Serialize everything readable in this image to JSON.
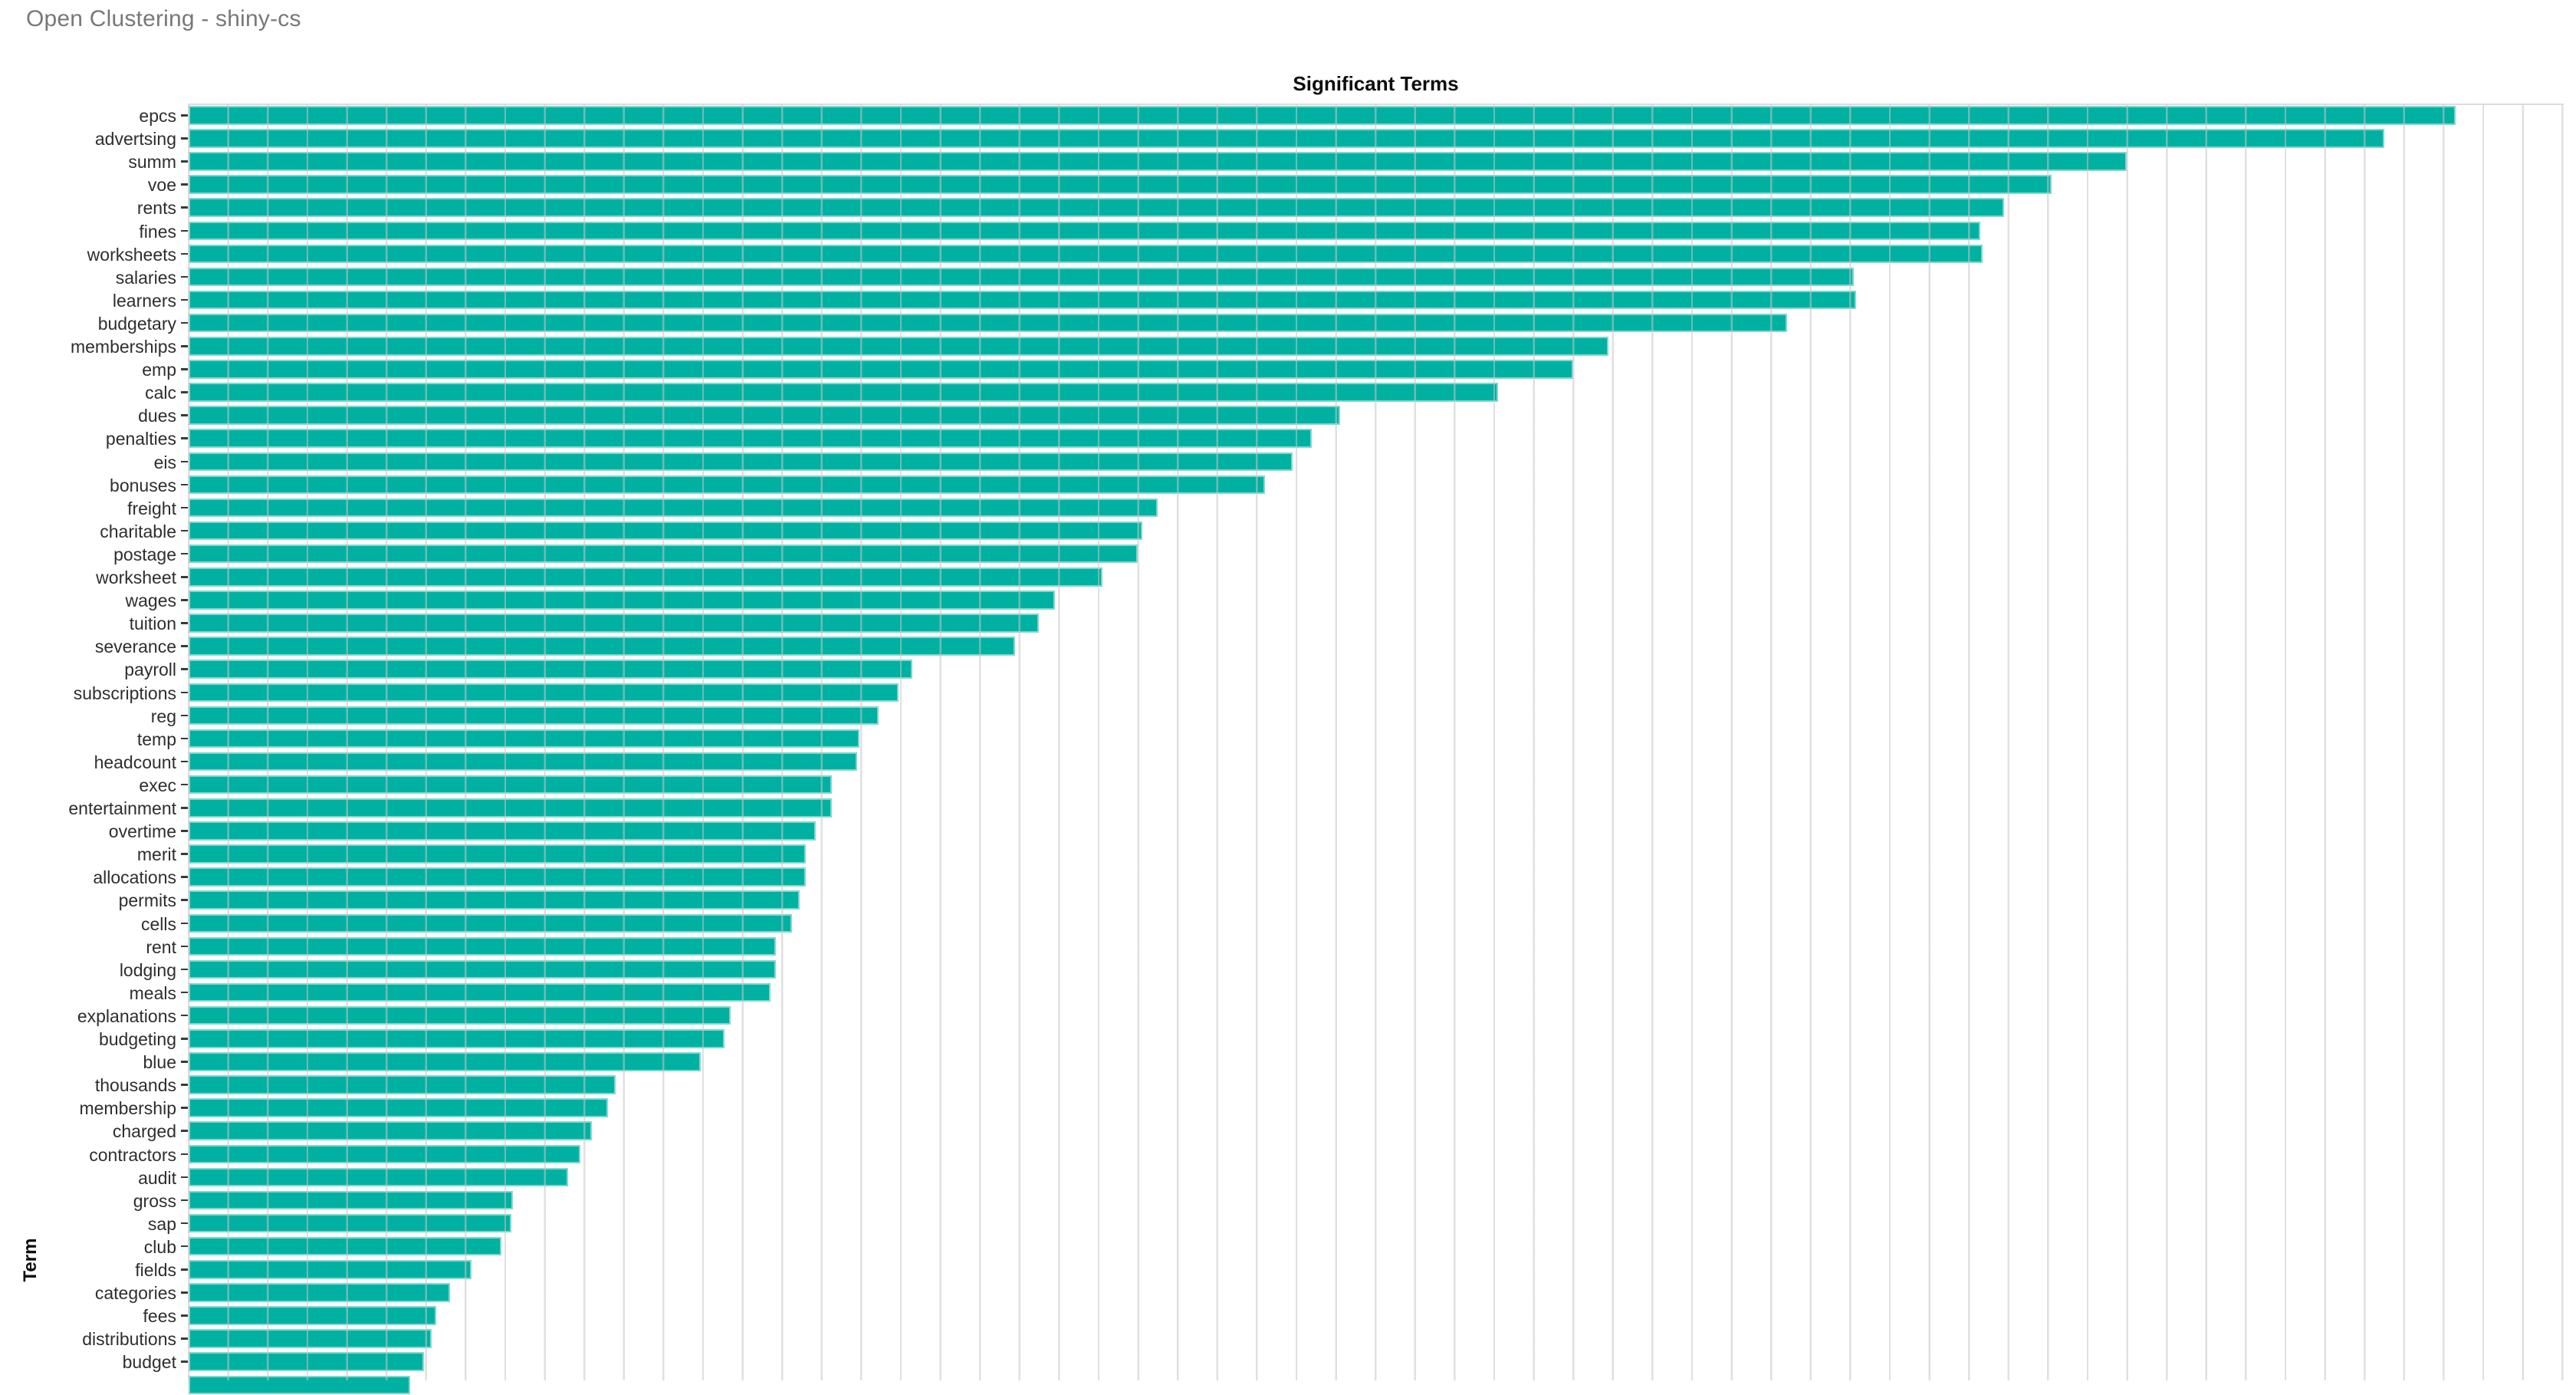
{
  "header": {
    "title": "Open Clustering - shiny-cs"
  },
  "chart_data": {
    "type": "bar",
    "orientation": "horizontal",
    "title": "Significant Terms",
    "xlabel": "",
    "ylabel": "Term",
    "legend": null,
    "grid": "vertical",
    "x_axis_tick_labels_visible": false,
    "units": "gridline-intervals",
    "xlim": [
      0,
      60
    ],
    "bar_color": "#00b1a1",
    "bar_border_color": "#7fd8d0",
    "grid_color": "#dcdcdc",
    "categories": [
      "epcs",
      "advertsing",
      "summ",
      "voe",
      "rents",
      "fines",
      "worksheets",
      "salaries",
      "learners",
      "budgetary",
      "memberships",
      "emp",
      "calc",
      "dues",
      "penalties",
      "eis",
      "bonuses",
      "freight",
      "charitable",
      "postage",
      "worksheet",
      "wages",
      "tuition",
      "severance",
      "payroll",
      "subscriptions",
      "reg",
      "temp",
      "headcount",
      "exec",
      "entertainment",
      "overtime",
      "merit",
      "allocations",
      "permits",
      "cells",
      "rent",
      "lodging",
      "meals",
      "explanations",
      "budgeting",
      "blue",
      "thousands",
      "membership",
      "charged",
      "contractors",
      "audit",
      "gross",
      "sap",
      "club",
      "fields",
      "categories",
      "fees",
      "distributions",
      "budget",
      ""
    ],
    "values": [
      57.3,
      55.5,
      49.0,
      47.1,
      45.9,
      45.3,
      45.35,
      42.1,
      42.15,
      40.4,
      35.9,
      35.0,
      33.1,
      29.1,
      28.4,
      27.9,
      27.2,
      24.5,
      24.1,
      24.0,
      23.1,
      21.9,
      21.5,
      20.9,
      18.3,
      17.95,
      17.45,
      16.95,
      16.9,
      16.25,
      16.25,
      15.85,
      15.6,
      15.6,
      15.45,
      15.25,
      14.85,
      14.85,
      14.7,
      13.7,
      13.55,
      12.95,
      10.8,
      10.6,
      10.2,
      9.9,
      9.6,
      8.2,
      8.15,
      7.9,
      7.15,
      6.6,
      6.25,
      6.15,
      5.95,
      5.6
    ]
  }
}
